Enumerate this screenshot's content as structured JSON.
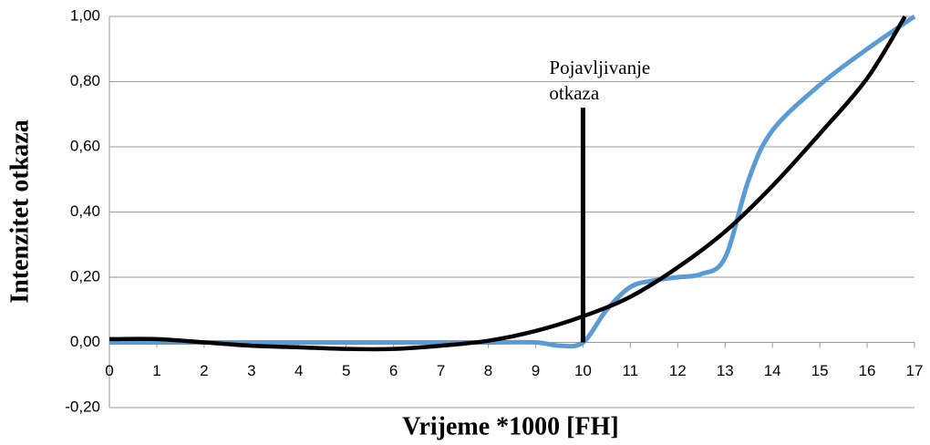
{
  "chart_data": {
    "type": "line",
    "xlabel": "Vrijeme *1000 [FH]",
    "ylabel": "Intenzitet otkaza",
    "xlim": [
      0,
      17
    ],
    "xticks": [
      0,
      1,
      2,
      3,
      4,
      5,
      6,
      7,
      8,
      9,
      10,
      11,
      12,
      13,
      14,
      15,
      16,
      17
    ],
    "ylim": [
      -0.2,
      1.0
    ],
    "yticks": [
      {
        "value": -0.2,
        "label": "-0,20"
      },
      {
        "value": 0,
        "label": "0,00"
      },
      {
        "value": 0.2,
        "label": "0,20"
      },
      {
        "value": 0.4,
        "label": "0,40"
      },
      {
        "value": 0.6,
        "label": "0,60"
      },
      {
        "value": 0.8,
        "label": "0,80"
      },
      {
        "value": 1.0,
        "label": "1,00"
      }
    ],
    "grid": true,
    "series": [
      {
        "color": "#5b9bd5",
        "x": [
          0,
          1,
          2,
          3,
          4,
          5,
          6,
          7,
          8,
          9,
          9.5,
          10,
          10.5,
          11,
          11.5,
          12,
          12.5,
          13,
          13.5,
          14,
          15,
          16,
          17
        ],
        "values": [
          0,
          0,
          0,
          0,
          0,
          0,
          0,
          0,
          0,
          0,
          -0.01,
          0,
          0.1,
          0.17,
          0.19,
          0.2,
          0.21,
          0.26,
          0.5,
          0.65,
          0.79,
          0.9,
          1.0
        ]
      },
      {
        "color": "#000000",
        "x": [
          0,
          1,
          2,
          3,
          4,
          5,
          6,
          7,
          8,
          9,
          10,
          11,
          12,
          13,
          14,
          15,
          16,
          16.8
        ],
        "values": [
          0.01,
          0.01,
          0.0,
          -0.01,
          -0.015,
          -0.02,
          -0.02,
          -0.01,
          0.005,
          0.035,
          0.08,
          0.14,
          0.23,
          0.34,
          0.48,
          0.64,
          0.81,
          1.0
        ]
      }
    ],
    "annotation": {
      "text": [
        "Pojavljivanje",
        "otkaza"
      ],
      "x": 10,
      "y": 0.72
    }
  }
}
